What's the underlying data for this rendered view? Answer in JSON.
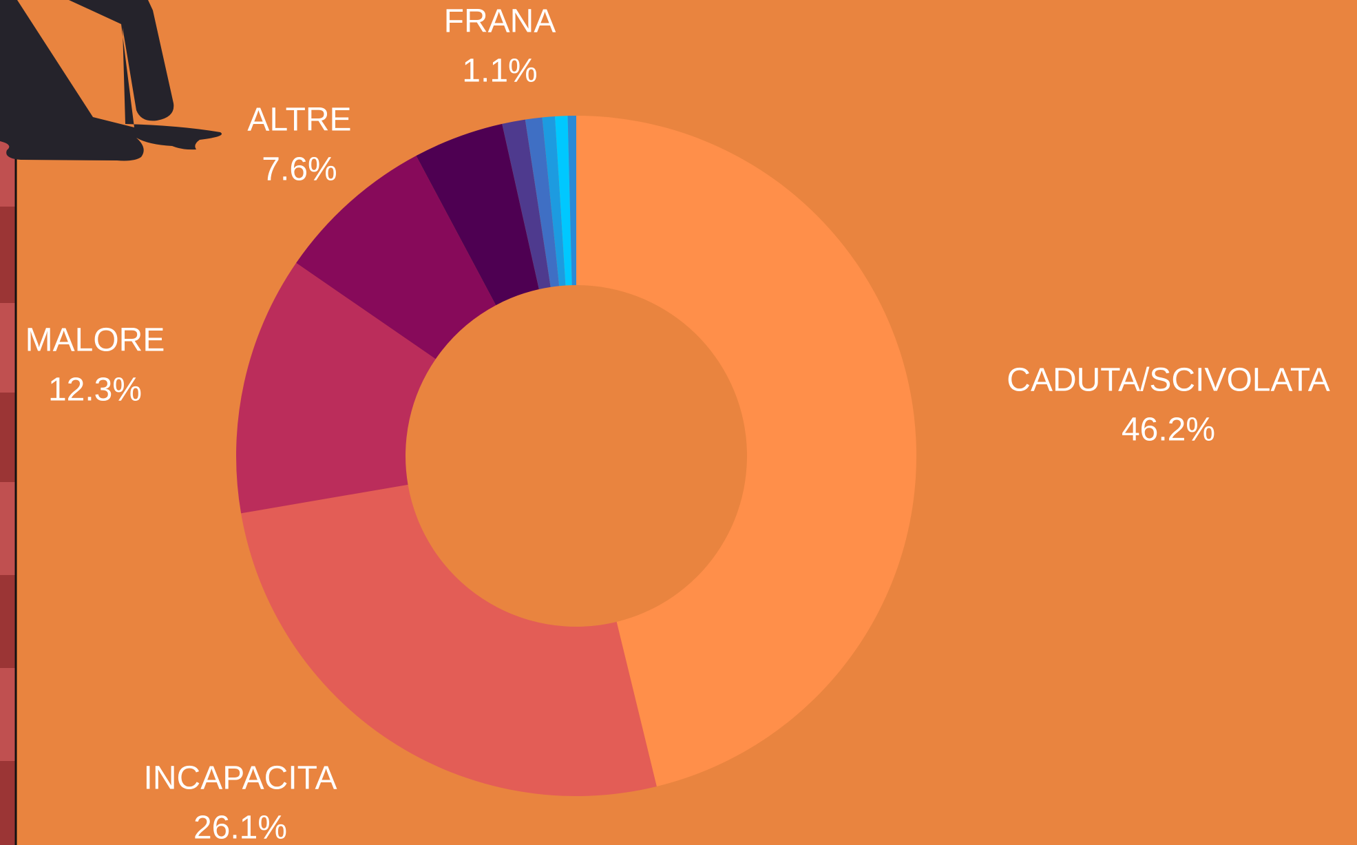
{
  "chart_data": {
    "type": "donut",
    "categories": [
      "CADUTA/SCIVOLATA",
      "INCAPACITA",
      "MALORE",
      "ALTRE",
      null,
      "FRANA",
      null,
      null,
      null,
      null
    ],
    "values": [
      46.2,
      26.1,
      12.3,
      7.6,
      4.3,
      1.1,
      0.8,
      0.6,
      0.6,
      0.4
    ],
    "value_labels": [
      "46.2%",
      "26.1%",
      "12.3%",
      "7.6%",
      null,
      "1.1%",
      null,
      null,
      null,
      null
    ],
    "colors": [
      "#ff8f4a",
      "#e35d56",
      "#bb2d5b",
      "#870a5a",
      "#4e0052",
      "#4e3a8e",
      "#3f6fc4",
      "#1d9be0",
      "#00c8ff",
      "#2a8ad6"
    ]
  }
}
